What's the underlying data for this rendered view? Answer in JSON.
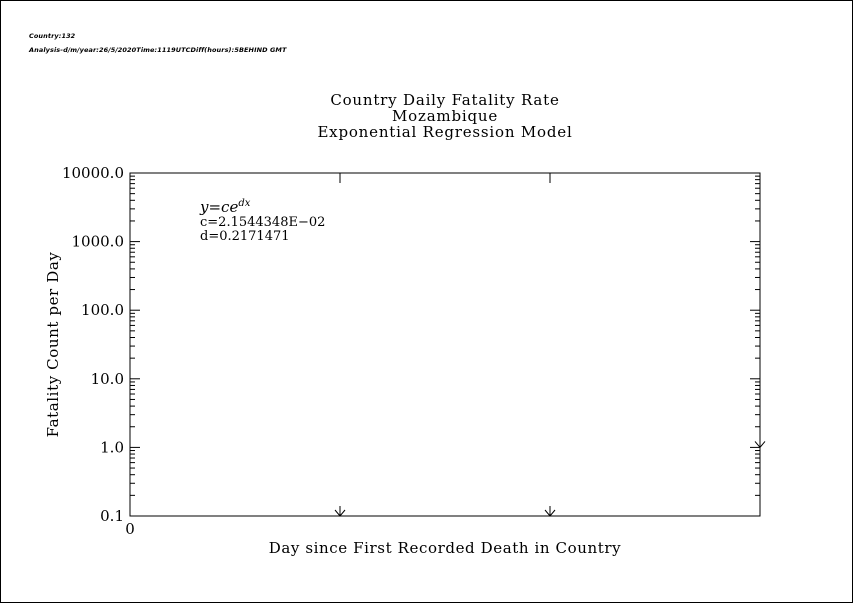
{
  "header": {
    "line1": "Country:132",
    "line2": "Analysis-d/m/year:26/5/2020Time:1119UTCDiff(hours):5BEHIND GMT"
  },
  "chart_data": {
    "type": "line",
    "title": [
      "Country Daily Fatality Rate",
      "Mozambique",
      "Exponential Regression Model"
    ],
    "xlabel": "Day since First Recorded Death in Country",
    "ylabel": "Fatality Count per Day",
    "y_scale": "log",
    "ylim": [
      0.1,
      10000
    ],
    "xlim": [
      0,
      3
    ],
    "y_tick_labels": [
      "0.1",
      "1.0",
      "10.0",
      "100.0",
      "1000.0",
      "10000.0"
    ],
    "x_tick_labels": [
      "0"
    ],
    "observed_points": [
      {
        "x": 1,
        "y": 0.1
      },
      {
        "x": 2,
        "y": 0.1
      },
      {
        "x": 3,
        "y": 1.0
      }
    ],
    "fit": {
      "equation": "y=ce^{dx}",
      "c_label": "c=2.1544348E−02",
      "d_label": "d=0.2171471",
      "c": 0.021544348,
      "d": 0.2171471,
      "x_range": [
        0,
        3
      ]
    },
    "grid": false,
    "legend": "none"
  }
}
